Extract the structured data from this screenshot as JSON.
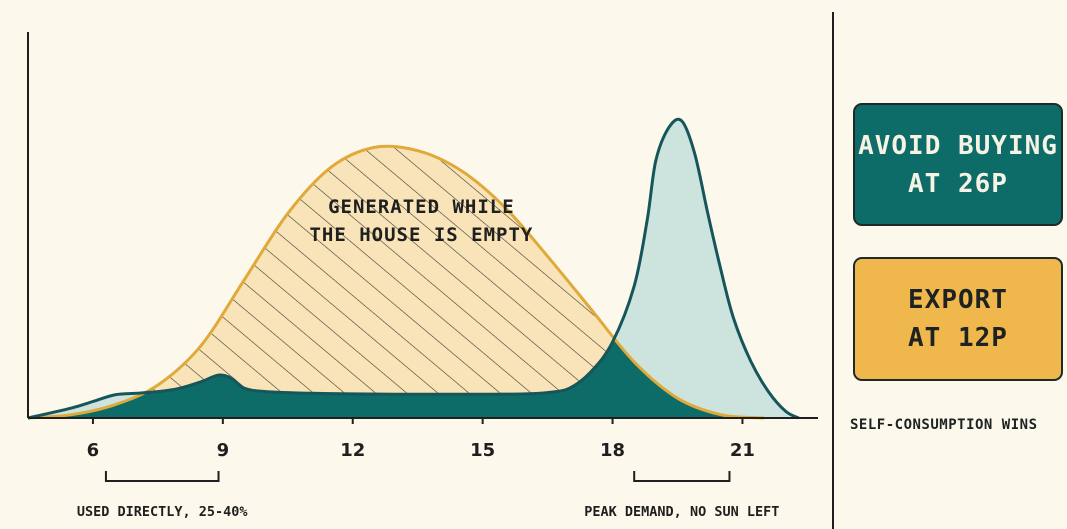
{
  "chart_data": {
    "type": "area",
    "x_ticks": [
      "6",
      "9",
      "12",
      "15",
      "18",
      "21"
    ],
    "xlim": [
      4.5,
      22.5
    ],
    "series": [
      {
        "role": "solar-generation",
        "color": "#e0aa3a",
        "fill": "#f8e4b8",
        "points": [
          [
            4.5,
            0
          ],
          [
            5.5,
            1
          ],
          [
            6.5,
            4
          ],
          [
            7.5,
            10
          ],
          [
            8.5,
            22
          ],
          [
            9.5,
            42
          ],
          [
            10.5,
            62
          ],
          [
            11.5,
            76
          ],
          [
            12.5,
            82
          ],
          [
            13.5,
            81
          ],
          [
            14.5,
            75
          ],
          [
            15.5,
            64
          ],
          [
            16.5,
            49
          ],
          [
            17.5,
            33
          ],
          [
            18.5,
            17
          ],
          [
            19.5,
            6
          ],
          [
            20.5,
            1
          ],
          [
            21.5,
            0
          ]
        ]
      },
      {
        "role": "household-demand",
        "color": "#16565a",
        "fill": "#cde4de",
        "points": [
          [
            4.5,
            0
          ],
          [
            5.5,
            3
          ],
          [
            6,
            5
          ],
          [
            6.5,
            7
          ],
          [
            7,
            7.5
          ],
          [
            7.5,
            8
          ],
          [
            8,
            9
          ],
          [
            8.5,
            11
          ],
          [
            8.9,
            13
          ],
          [
            9.2,
            12
          ],
          [
            9.5,
            9
          ],
          [
            10,
            8
          ],
          [
            11,
            7.5
          ],
          [
            12,
            7.3
          ],
          [
            13,
            7.2
          ],
          [
            14,
            7.2
          ],
          [
            15,
            7.2
          ],
          [
            16,
            7.3
          ],
          [
            16.5,
            7.7
          ],
          [
            17,
            9
          ],
          [
            17.5,
            14
          ],
          [
            18,
            23
          ],
          [
            18.5,
            40
          ],
          [
            18.8,
            60
          ],
          [
            19,
            78
          ],
          [
            19.3,
            88
          ],
          [
            19.6,
            90
          ],
          [
            19.9,
            80
          ],
          [
            20.2,
            62
          ],
          [
            20.5,
            45
          ],
          [
            20.8,
            30
          ],
          [
            21.2,
            17
          ],
          [
            21.6,
            8
          ],
          [
            22,
            2
          ],
          [
            22.3,
            0
          ]
        ]
      }
    ],
    "annotations": [
      {
        "text": "GENERATED WHILE",
        "region": "solar-surplus"
      },
      {
        "text": "THE HOUSE IS EMPTY",
        "region": "solar-surplus"
      },
      {
        "text": "USED DIRECTLY, 25-40%",
        "range": [
          6.3,
          8.9
        ]
      },
      {
        "text": "PEAK DEMAND, NO SUN LEFT",
        "range": [
          18.5,
          20.7
        ]
      }
    ],
    "colors": {
      "self_consumed": "#0d6b68",
      "axis": "#1f1f1f"
    }
  },
  "cards": {
    "avoid": [
      "AVOID BUYING",
      "AT 26P"
    ],
    "export": [
      "EXPORT",
      "AT 12P"
    ],
    "footer": "SELF-CONSUMPTION WINS"
  }
}
